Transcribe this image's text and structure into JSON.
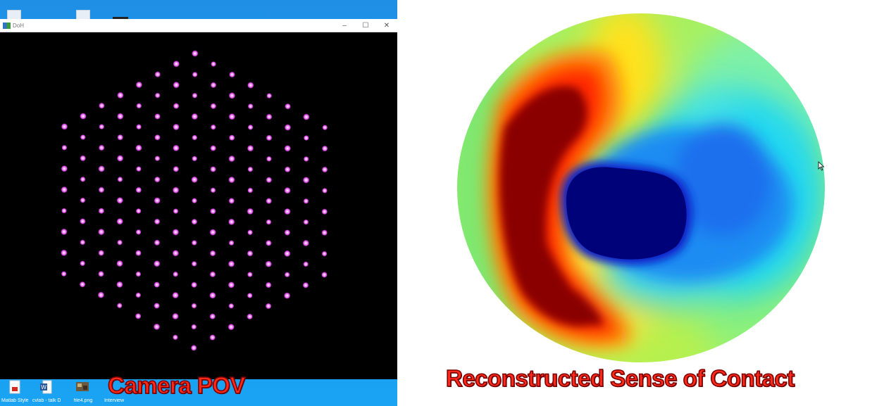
{
  "window": {
    "title": "DoH",
    "controls": {
      "minimize": "–",
      "maximize": "☐",
      "close": "✕"
    }
  },
  "taskbar": {
    "items": [
      {
        "name": "matlab-style-file",
        "label": "Matlab Style Guidelines",
        "icon": "pdf-icon"
      },
      {
        "name": "word-file",
        "label": "cvlab - talk Discuss",
        "icon": "word-icon"
      },
      {
        "name": "image-file",
        "label": "file4.png",
        "icon": "image-icon"
      },
      {
        "name": "other-file",
        "label": "Interview",
        "icon": "file-icon"
      }
    ]
  },
  "captions": {
    "left": "Camera POV",
    "right": "Reconstructed Sense of Contact"
  },
  "colors": {
    "desktop": "#1e96ec",
    "marker": "#e04ee6",
    "caption_fill": "#ff2a1a",
    "caption_stroke": "#7a0000"
  }
}
